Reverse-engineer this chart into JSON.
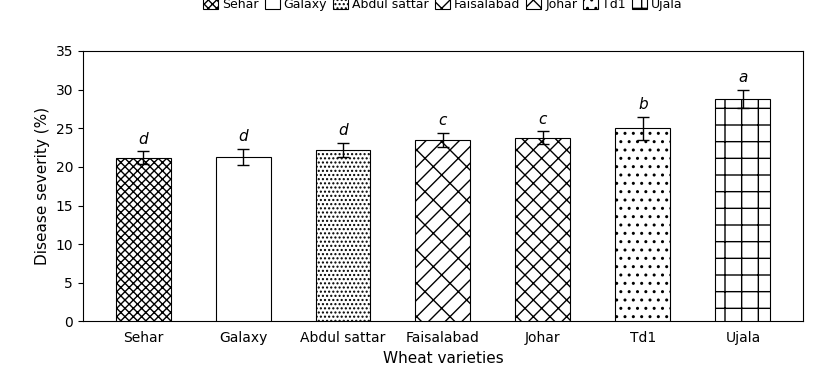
{
  "categories": [
    "Sehar",
    "Galaxy",
    "Abdul sattar",
    "Faisalabad",
    "Johar",
    "Td1",
    "Ujala"
  ],
  "values": [
    21.2,
    21.3,
    22.2,
    23.5,
    23.8,
    25.0,
    28.8
  ],
  "errors": [
    0.8,
    1.0,
    0.9,
    0.9,
    0.8,
    1.5,
    1.2
  ],
  "letters": [
    "d",
    "d",
    "d",
    "c",
    "c",
    "b",
    "a"
  ],
  "ylabel": "Disease severity (%)",
  "xlabel": "Wheat varieties",
  "ylim": [
    0,
    35
  ],
  "yticks": [
    0,
    5,
    10,
    15,
    20,
    25,
    30,
    35
  ],
  "bar_color": "#ffffff",
  "bar_edgecolor": "#000000",
  "legend_labels": [
    "Sehar",
    "Galaxy",
    "Abdul sattar",
    "Faisalabad",
    "Johar",
    "Td1",
    "Ujala"
  ],
  "axis_fontsize": 11,
  "tick_fontsize": 10,
  "legend_fontsize": 9,
  "letter_fontsize": 11,
  "bar_width": 0.55
}
